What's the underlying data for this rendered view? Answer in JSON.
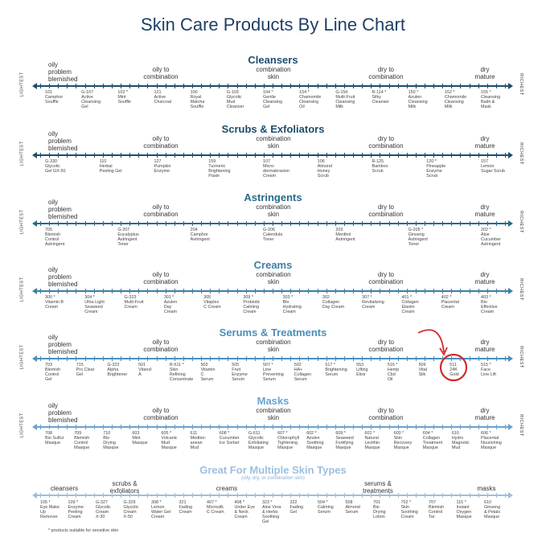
{
  "title": "Skin Care Products By Line Chart",
  "axis": {
    "left": "LIGHTEST",
    "right": "RICHEST"
  },
  "skin_types": {
    "oily_problem": "oily\nproblem\nblemished",
    "oily_combo": "oily to\ncombination",
    "combo": "combination\nskin",
    "dry_combo": "dry to\ncombination",
    "dry": "dry\nmature"
  },
  "colors": {
    "cleansers": "#1e4d6b",
    "scrubs": "#1e4d6b",
    "astringents": "#2a6a8a",
    "creams": "#3b7fa6",
    "serums": "#4a8fba",
    "masks": "#6aa3cf",
    "multi": "#9dbfdf",
    "highlight": "#d42a2a"
  },
  "sections": [
    {
      "key": "cleansers",
      "title": "Cleansers",
      "products": [
        "101\nCamphor\nSouffle",
        "G-107\nActive\nCleansing\nGel",
        "102 *\nMint\nSouffle",
        "121\nActive\nCharcoal",
        "100\nRoyal\nMatcha\nSouffle",
        "G-103\nGlycolic\nMud\nCleanser",
        "104 *\nGentle\nCleansing\nGel",
        "154 *\nChamomile\nCleansing\nOil",
        "G-154\nMulti-Fruit\nCleansing\nMilk",
        "R-114 *\nSilky\nCleanser",
        "150 *\nAzulen\nCleansing\nMilk",
        "152 *\nChamomile\nCleansing\nMilk",
        "155 *\nCleansing\nBalm &\nMask"
      ]
    },
    {
      "key": "scrubs",
      "title": "Scrubs & Exfoliators",
      "products": [
        "G-330\nGlycolic\nGel GX-50",
        "110\nHerbal\nPeeling Gel",
        "127\nPumpkin\nEnzyme",
        "159\nTurmeric\nBrightening\nPaste",
        "107\nMicro-\ndermabrasion\nCream",
        "106\nAlmond\nHoney\nScrub",
        "R-125\nBamboo\nScrub",
        "120 *\nPineapple\nEnzyme\nScrub",
        "157\nLemon\nSugar Scrub"
      ]
    },
    {
      "key": "astringents",
      "title": "Astringents",
      "products": [
        "705\nBlemish\nControl\nAstringent",
        "G-207\nEucalyptus\nAstringent\nToner",
        "204\nCamphor\nAstringent",
        "G-206\nCalendula\nToner",
        "203\nMenthol\nAstringent",
        "G-205 *\nGinseng\nAstringent\nToner",
        "202 *\nAloe\nCucumber\nAstringent"
      ]
    },
    {
      "key": "creams",
      "title": "Creams",
      "products": [
        "300 *\nVitamin B\nCream",
        "304 *\nUltra Light\nSeaweed\nCream",
        "G-323\nMulti-Fruit\nCream",
        "301 *\nAzulen\nDay\nCream",
        "305\nVitaplex\nC Cream",
        "309 *\nProbiotic\nCalming\nCream",
        "303 *\nBio\nHydrating\nCream",
        "302\nCollagen\nDay Cream",
        "307 *\nRevitalizing\nCream",
        "401 *\nCollagen\nElastin\nCream",
        "402 *\nPlacental\nCream",
        "403 *\nBio\nEffective\nCream"
      ]
    },
    {
      "key": "serums",
      "title": "Serums & Treatments",
      "products": [
        "703\nBlemish\nControl\nGel",
        "715\nPro Clear\nGel",
        "G-322\nAlpha\nBrightener",
        "501\nVitanol\nA",
        "R-511 *\nSkin\nRefining\nConcentrate",
        "503\nVitamin\nC\nSerum",
        "505\nFruit\nEnzyme\nSerum",
        "507 *\nLine\nPreventing\nSerum",
        "502\nHA+\nCollagen\nSerum",
        "517 *\nBrightening\nSerum",
        "553\nLifting\nElixir",
        "516 *\nHemp\nCbd\nOil",
        "509\nVital\nSilk",
        "511\n24K\nGold",
        "515 *\nFace\nLine Lift"
      ]
    },
    {
      "key": "masks",
      "title": "Masks",
      "products": [
        "708\nBio Sulfur\nMasque",
        "709\nBlemish\nControl\nMasque",
        "710\nBio\nDrying\nMasque",
        "603\nMint\nMasque",
        "605 *\nVolcanic\nMud\nMasque",
        "611\nMediter-\nanean\nMud",
        "608 *\nCucumber\nIce Sorbet",
        "G-611\nGlycolic\nExfoliating\nMasque",
        "607 *\nChlorophyll\nTightening\nMasque",
        "602 *\nAzulen\nSoothing\nMasque",
        "609 *\nSeaweed\nFortifying\nMasque",
        "601 *\nNatural\nLecithin\nMasque",
        "600 *\nSkin\nRecovery\nMasque",
        "604 *\nCollagen\nTreatment\nMasque",
        "610\nHydro\nMagnetic\nMud",
        "606 *\nPlacental\nNourishing\nMasque"
      ]
    }
  ],
  "multi": {
    "title": "Great For Multiple Skin Types",
    "subtitle": "(oily, dry, or combination skin)",
    "categories": [
      "cleansers",
      "scrubs &\nexfoliators",
      "creams",
      "serums &\ntreatments",
      "masks"
    ],
    "products": [
      "105 *\nEye Make\nUp\nRemover",
      "109 *\nEnzyme\nPeeling\nCream",
      "G-327\nGlycolic\nCream\nX-30",
      "G-329\nGlycolic\nCream\nX-50",
      "308 *\nLemon\nWater Gel\nCream",
      "321\nFading\nCream",
      "407 *\nMicrosilk\nC Cream",
      "408 *\nUnder Eye\n& Neck\nCream",
      "323 *\nAloe Vera\n& Herbs\nSoothing\nGel",
      "322\nFading\nGel",
      "504 *\nCalming\nSerum",
      "508\nAlmond\nSerum",
      "701\nBio\nDrying\nLotion",
      "702 *\nSkin\nSoothing\nCream",
      "707\nBlemish\nControl\nTar",
      "115 *\nInstant\nOxygen\nMasque",
      "610\nGinseng\n& Petals\nMasque"
    ]
  },
  "footnote": "* products suitable for sensitive skin"
}
